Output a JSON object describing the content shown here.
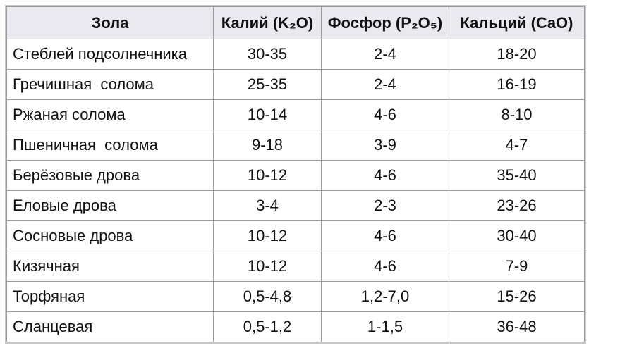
{
  "table": {
    "header": [
      "Зола",
      "Калий (K₂O)",
      "Фосфор (P₂O₅)",
      "Кальций (CaO)"
    ],
    "rows": [
      [
        "Стеблей подсолнечника",
        "30-35",
        "2-4",
        "18-20"
      ],
      [
        "Гречишная  солома",
        "25-35",
        "2-4",
        "16-19"
      ],
      [
        "Ржаная солома",
        "10-14",
        "4-6",
        "8-10"
      ],
      [
        "Пшеничная  солома",
        "9-18",
        "3-9",
        "4-7"
      ],
      [
        "Берёзовые дрова",
        "10-12",
        "4-6",
        "35-40"
      ],
      [
        "Еловые дрова",
        "3-4",
        "2-3",
        "23-26"
      ],
      [
        "Сосновые дрова",
        "10-12",
        "4-6",
        "30-40"
      ],
      [
        "Кизячная",
        "10-12",
        "4-6",
        "7-9"
      ],
      [
        "Торфяная",
        "0,5-4,8",
        "1,2-7,0",
        "15-26"
      ],
      [
        "Сланцевая",
        "0,5-1,2",
        "1-1,5",
        "36-48"
      ]
    ]
  }
}
